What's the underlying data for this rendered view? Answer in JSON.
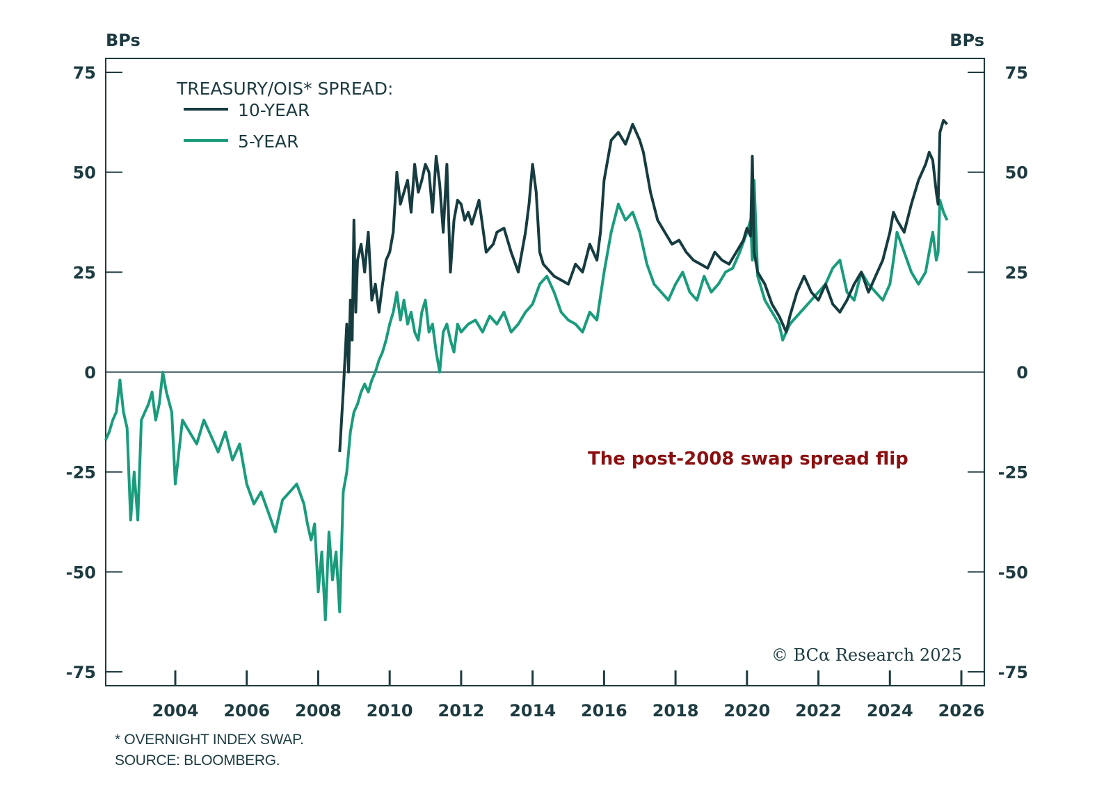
{
  "chart_data": {
    "type": "line",
    "title": "",
    "legend_title": "TREASURY/OIS* SPREAD:",
    "legend_position": "top-left",
    "ylabel_left": "BPs",
    "ylabel_right": "BPs",
    "xlabel": "",
    "ylim": [
      -75,
      75
    ],
    "xlim": [
      2002.05,
      2026.6
    ],
    "yticks": [
      75,
      50,
      25,
      0,
      -25,
      -50,
      -75
    ],
    "ytick_labels": [
      "75",
      "50",
      "25",
      "0",
      "-25",
      "-50",
      "-75"
    ],
    "xticks": [
      2004,
      2006,
      2008,
      2010,
      2012,
      2014,
      2016,
      2018,
      2020,
      2022,
      2024,
      2026
    ],
    "xtick_labels": [
      "2004",
      "2006",
      "2008",
      "2010",
      "2012",
      "2014",
      "2016",
      "2018",
      "2020",
      "2022",
      "2024",
      "2026"
    ],
    "zero_line": true,
    "grid": false,
    "annotation": "The post-2008 swap spread flip",
    "copyright": "© BCα Research 2025",
    "series": [
      {
        "name": "10-YEAR",
        "color": "#163c40",
        "x": [
          2008.6,
          2008.7,
          2008.8,
          2008.85,
          2008.9,
          2008.95,
          2009.0,
          2009.05,
          2009.1,
          2009.2,
          2009.3,
          2009.4,
          2009.5,
          2009.6,
          2009.7,
          2009.8,
          2009.9,
          2010.0,
          2010.1,
          2010.2,
          2010.3,
          2010.4,
          2010.5,
          2010.6,
          2010.7,
          2010.8,
          2010.9,
          2011.0,
          2011.1,
          2011.2,
          2011.3,
          2011.4,
          2011.5,
          2011.6,
          2011.7,
          2011.8,
          2011.9,
          2012.0,
          2012.1,
          2012.2,
          2012.3,
          2012.5,
          2012.7,
          2012.9,
          2013.0,
          2013.2,
          2013.4,
          2013.6,
          2013.8,
          2013.9,
          2014.0,
          2014.1,
          2014.2,
          2014.3,
          2014.4,
          2014.6,
          2014.8,
          2015.0,
          2015.2,
          2015.4,
          2015.6,
          2015.8,
          2015.9,
          2016.0,
          2016.2,
          2016.4,
          2016.6,
          2016.8,
          2017.0,
          2017.1,
          2017.3,
          2017.5,
          2017.7,
          2017.9,
          2018.1,
          2018.3,
          2018.5,
          2018.7,
          2018.9,
          2019.1,
          2019.3,
          2019.5,
          2019.7,
          2019.9,
          2020.0,
          2020.1,
          2020.15,
          2020.2,
          2020.3,
          2020.5,
          2020.7,
          2020.9,
          2021.0,
          2021.1,
          2021.2,
          2021.4,
          2021.6,
          2021.8,
          2022.0,
          2022.2,
          2022.4,
          2022.6,
          2022.8,
          2023.0,
          2023.2,
          2023.4,
          2023.6,
          2023.8,
          2024.0,
          2024.1,
          2024.2,
          2024.4,
          2024.6,
          2024.8,
          2025.0,
          2025.1,
          2025.2,
          2025.3,
          2025.35,
          2025.4,
          2025.5,
          2025.6
        ],
        "y": [
          -20,
          -5,
          12,
          0,
          18,
          8,
          38,
          15,
          28,
          32,
          25,
          35,
          18,
          22,
          15,
          22,
          28,
          30,
          35,
          50,
          42,
          45,
          48,
          40,
          52,
          45,
          48,
          52,
          50,
          40,
          54,
          47,
          35,
          52,
          25,
          38,
          43,
          42,
          38,
          40,
          37,
          43,
          30,
          32,
          35,
          36,
          30,
          25,
          35,
          42,
          52,
          45,
          30,
          27,
          26,
          24,
          23,
          22,
          27,
          25,
          32,
          28,
          35,
          48,
          58,
          60,
          57,
          62,
          58,
          55,
          45,
          38,
          35,
          32,
          33,
          30,
          28,
          27,
          26,
          30,
          28,
          27,
          30,
          33,
          36,
          34,
          54,
          30,
          25,
          22,
          17,
          14,
          12,
          10,
          14,
          20,
          24,
          20,
          18,
          22,
          17,
          15,
          18,
          22,
          25,
          20,
          24,
          28,
          35,
          40,
          38,
          35,
          42,
          48,
          52,
          55,
          53,
          45,
          42,
          60,
          63,
          62
        ]
      },
      {
        "name": "5-YEAR",
        "color": "#1a9c7c",
        "x": [
          2002.05,
          2002.15,
          2002.25,
          2002.35,
          2002.45,
          2002.55,
          2002.65,
          2002.75,
          2002.85,
          2002.95,
          2003.05,
          2003.15,
          2003.25,
          2003.35,
          2003.45,
          2003.55,
          2003.65,
          2003.75,
          2003.9,
          2004.0,
          2004.2,
          2004.4,
          2004.6,
          2004.8,
          2005.0,
          2005.2,
          2005.4,
          2005.6,
          2005.8,
          2006.0,
          2006.2,
          2006.4,
          2006.6,
          2006.8,
          2007.0,
          2007.2,
          2007.4,
          2007.6,
          2007.7,
          2007.8,
          2007.9,
          2008.0,
          2008.1,
          2008.2,
          2008.3,
          2008.4,
          2008.5,
          2008.6,
          2008.7,
          2008.8,
          2008.9,
          2009.0,
          2009.1,
          2009.2,
          2009.3,
          2009.4,
          2009.5,
          2009.6,
          2009.7,
          2009.8,
          2009.9,
          2010.0,
          2010.1,
          2010.2,
          2010.3,
          2010.4,
          2010.5,
          2010.6,
          2010.7,
          2010.8,
          2010.9,
          2011.0,
          2011.1,
          2011.2,
          2011.3,
          2011.4,
          2011.5,
          2011.6,
          2011.7,
          2011.8,
          2011.9,
          2012.0,
          2012.2,
          2012.4,
          2012.6,
          2012.8,
          2013.0,
          2013.2,
          2013.4,
          2013.6,
          2013.8,
          2014.0,
          2014.2,
          2014.4,
          2014.6,
          2014.8,
          2015.0,
          2015.2,
          2015.4,
          2015.6,
          2015.8,
          2016.0,
          2016.2,
          2016.4,
          2016.6,
          2016.8,
          2017.0,
          2017.2,
          2017.4,
          2017.6,
          2017.8,
          2018.0,
          2018.2,
          2018.4,
          2018.6,
          2018.8,
          2019.0,
          2019.2,
          2019.4,
          2019.6,
          2019.8,
          2020.0,
          2020.1,
          2020.15,
          2020.2,
          2020.3,
          2020.5,
          2020.7,
          2020.9,
          2021.0,
          2021.1,
          2021.2,
          2021.4,
          2021.6,
          2021.8,
          2022.0,
          2022.2,
          2022.4,
          2022.6,
          2022.8,
          2023.0,
          2023.2,
          2023.4,
          2023.6,
          2023.8,
          2024.0,
          2024.1,
          2024.2,
          2024.4,
          2024.6,
          2024.8,
          2025.0,
          2025.1,
          2025.2,
          2025.3,
          2025.35,
          2025.4,
          2025.5,
          2025.6
        ],
        "y": [
          -17,
          -15,
          -12,
          -10,
          -2,
          -10,
          -14,
          -37,
          -25,
          -37,
          -12,
          -10,
          -8,
          -5,
          -12,
          -8,
          0,
          -5,
          -10,
          -28,
          -12,
          -15,
          -18,
          -12,
          -16,
          -20,
          -15,
          -22,
          -18,
          -28,
          -33,
          -30,
          -35,
          -40,
          -32,
          -30,
          -28,
          -33,
          -38,
          -42,
          -38,
          -55,
          -45,
          -62,
          -40,
          -52,
          -45,
          -60,
          -30,
          -25,
          -15,
          -10,
          -8,
          -5,
          -3,
          -5,
          -2,
          0,
          3,
          5,
          8,
          12,
          15,
          20,
          13,
          18,
          12,
          15,
          10,
          8,
          15,
          18,
          10,
          12,
          5,
          0,
          10,
          12,
          8,
          5,
          12,
          10,
          12,
          13,
          10,
          14,
          12,
          15,
          10,
          12,
          15,
          17,
          22,
          24,
          20,
          15,
          13,
          12,
          10,
          15,
          13,
          25,
          35,
          42,
          38,
          40,
          35,
          27,
          22,
          20,
          18,
          22,
          25,
          20,
          18,
          24,
          20,
          22,
          25,
          26,
          30,
          35,
          38,
          28,
          48,
          24,
          18,
          15,
          12,
          8,
          10,
          12,
          14,
          16,
          18,
          20,
          22,
          26,
          28,
          20,
          18,
          25,
          22,
          20,
          18,
          22,
          28,
          35,
          30,
          25,
          22,
          25,
          30,
          35,
          28,
          30,
          43,
          40,
          38
        ]
      }
    ]
  },
  "footnotes": [
    "* OVERNIGHT INDEX SWAP.",
    "SOURCE: BLOOMBERG."
  ]
}
